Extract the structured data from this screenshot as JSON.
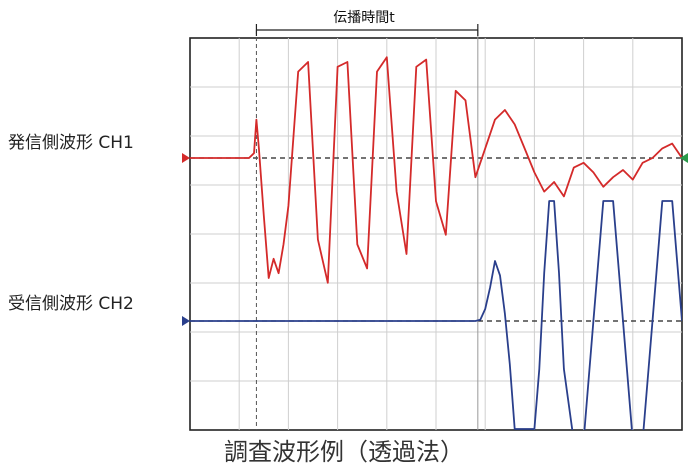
{
  "chart_data": {
    "type": "line",
    "title": "",
    "caption": "調査波形例（透過法）",
    "xlabel": "",
    "ylabel": "",
    "grid": true,
    "annotations": {
      "propagation_time": "伝播時間t"
    },
    "series": [
      {
        "name": "発信側波形 CH1",
        "color": "#d42a2a",
        "baseline": 0,
        "x": [
          0,
          12,
          13,
          13.5,
          14,
          15,
          16,
          17,
          18,
          19,
          20,
          22,
          24,
          26,
          28,
          30,
          32,
          34,
          36,
          38,
          40,
          42,
          44,
          46,
          48,
          50,
          52,
          54,
          56,
          58,
          60,
          62,
          64,
          66,
          68,
          70,
          72,
          74,
          76,
          78,
          80,
          82,
          84,
          86,
          88,
          90,
          92,
          94,
          96,
          98,
          100
        ],
        "y": [
          0,
          0,
          0.2,
          1.6,
          0.4,
          -2.4,
          -5.0,
          -4.2,
          -4.8,
          -3.6,
          -2.0,
          3.6,
          4.0,
          -3.4,
          -5.2,
          3.8,
          4.0,
          -3.6,
          -4.6,
          3.6,
          4.2,
          -1.4,
          -4.0,
          3.8,
          4.1,
          -1.8,
          -3.2,
          2.8,
          2.4,
          -0.8,
          0.4,
          1.6,
          2.0,
          1.4,
          0.4,
          -0.6,
          -1.4,
          -1.0,
          -1.6,
          -0.4,
          -0.2,
          -0.6,
          -1.2,
          -0.8,
          -0.5,
          -0.9,
          -0.2,
          0.0,
          0.4,
          0.6,
          0.0
        ]
      },
      {
        "name": "受信側波形 CH2",
        "color": "#2a3f8c",
        "baseline": 0,
        "x": [
          0,
          10,
          20,
          30,
          40,
          50,
          58,
          59,
          60,
          61,
          62,
          63,
          64,
          65,
          66,
          68,
          70,
          71,
          72,
          73,
          74,
          75,
          76,
          78,
          80,
          82,
          84,
          86,
          88,
          90,
          92,
          94,
          96,
          98,
          100
        ],
        "y": [
          0,
          0,
          0,
          0,
          0,
          0,
          0,
          0.05,
          0.5,
          1.4,
          2.5,
          1.9,
          0.3,
          -1.8,
          -4.5,
          -4.5,
          -4.5,
          -2.0,
          2.0,
          5.0,
          5.0,
          2.0,
          -2.0,
          -5.0,
          -5.0,
          0.0,
          5.0,
          5.0,
          0.0,
          -5.0,
          -5.0,
          0.0,
          5.0,
          5.0,
          0.0
        ]
      }
    ]
  },
  "labels": {
    "ch1": "発信側波形 CH1",
    "ch2": "受信側波形 CH2"
  }
}
